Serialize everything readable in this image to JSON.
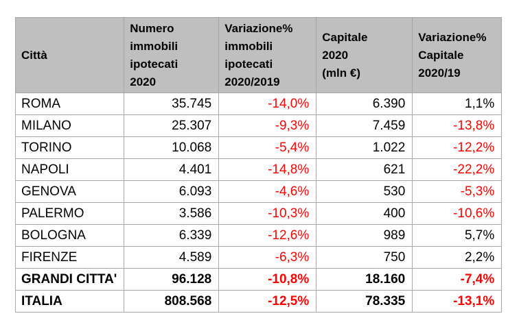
{
  "chart_data": {
    "type": "table",
    "columns": [
      "Città",
      "Numero immobili ipotecati 2020",
      "Variazione% immobili ipotecati 2020/2019",
      "Capitale 2020 (mln €)",
      "Variazione% Capitale 2020/19"
    ],
    "rows": [
      [
        "ROMA",
        "35.745",
        "-14,0%",
        "6.390",
        "1,1%"
      ],
      [
        "MILANO",
        "25.307",
        "-9,3%",
        "7.459",
        "-13,8%"
      ],
      [
        "TORINO",
        "10.068",
        "-5,4%",
        "1.022",
        "-12,2%"
      ],
      [
        "NAPOLI",
        "4.401",
        "-14,8%",
        "621",
        "-22,2%"
      ],
      [
        "GENOVA",
        "6.093",
        "-4,6%",
        "530",
        "-5,3%"
      ],
      [
        "PALERMO",
        "3.586",
        "-10,3%",
        "400",
        "-10,6%"
      ],
      [
        "BOLOGNA",
        "6.339",
        "-12,6%",
        "989",
        "5,7%"
      ],
      [
        "FIRENZE",
        "4.589",
        "-6,3%",
        "750",
        "2,2%"
      ],
      [
        "GRANDI CITTA'",
        "96.128",
        "-10,8%",
        "18.160",
        "-7,4%"
      ],
      [
        "ITALIA",
        "808.568",
        "-12,5%",
        "78.335",
        "-13,1%"
      ]
    ],
    "bold_rows": [
      "GRANDI CITTA'",
      "ITALIA"
    ],
    "notes": "Negative percentage values rendered in red, positive in black"
  },
  "header": {
    "citta": "Città",
    "numero": "Numero\nimmobili\nipotecati\n2020",
    "var_immobili": "Variazione%\nimmobili\nipotecati\n2020/2019",
    "capitale": "Capitale\n2020\n(mln €)",
    "var_capitale": "Variazione%\nCapitale\n2020/19"
  },
  "colors": {
    "header_bg": "#bfbfbf",
    "border": "#a6a6a6",
    "negative": "#ff0000",
    "text": "#000000"
  }
}
